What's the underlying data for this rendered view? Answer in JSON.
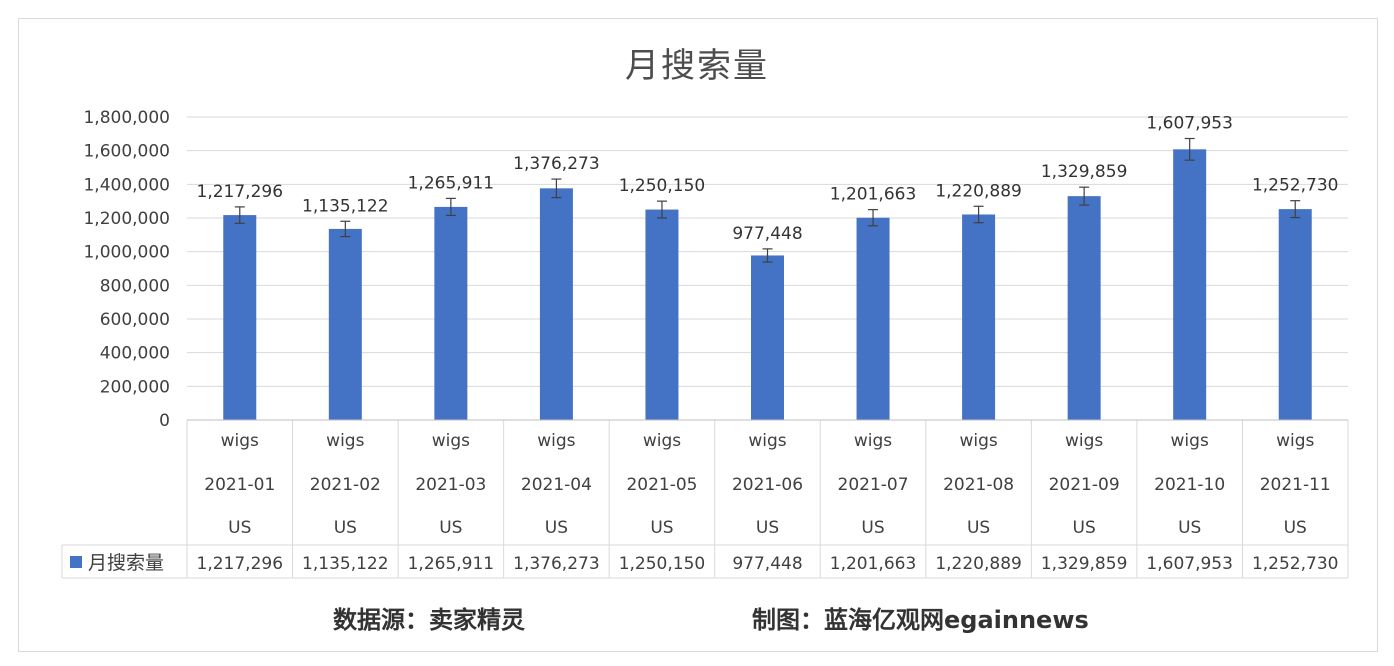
{
  "chart_data": {
    "type": "bar",
    "title": "月搜索量",
    "series_name": "月搜索量",
    "categories": [
      {
        "keyword": "wigs",
        "month": "2021-01",
        "country": "US"
      },
      {
        "keyword": "wigs",
        "month": "2021-02",
        "country": "US"
      },
      {
        "keyword": "wigs",
        "month": "2021-03",
        "country": "US"
      },
      {
        "keyword": "wigs",
        "month": "2021-04",
        "country": "US"
      },
      {
        "keyword": "wigs",
        "month": "2021-05",
        "country": "US"
      },
      {
        "keyword": "wigs",
        "month": "2021-06",
        "country": "US"
      },
      {
        "keyword": "wigs",
        "month": "2021-07",
        "country": "US"
      },
      {
        "keyword": "wigs",
        "month": "2021-08",
        "country": "US"
      },
      {
        "keyword": "wigs",
        "month": "2021-09",
        "country": "US"
      },
      {
        "keyword": "wigs",
        "month": "2021-10",
        "country": "US"
      },
      {
        "keyword": "wigs",
        "month": "2021-11",
        "country": "US"
      }
    ],
    "values": [
      1217296,
      1135122,
      1265911,
      1376273,
      1250150,
      977448,
      1201663,
      1220889,
      1329859,
      1607953,
      1252730
    ],
    "value_labels": [
      "1,217,296",
      "1,135,122",
      "1,265,911",
      "1,376,273",
      "1,250,150",
      "977,448",
      "1,201,663",
      "1,220,889",
      "1,329,859",
      "1,607,953",
      "1,252,730"
    ],
    "yticks": [
      "0",
      "200,000",
      "400,000",
      "600,000",
      "800,000",
      "1,000,000",
      "1,200,000",
      "1,400,000",
      "1,600,000",
      "1,800,000"
    ],
    "ylim": [
      0,
      1800000
    ],
    "error_bars": true,
    "data_table": true,
    "grid": true,
    "bar_color": "#4472c4"
  },
  "footer": {
    "source": "数据源：卖家精灵",
    "credit": "制图：蓝海亿观网egainnews"
  }
}
